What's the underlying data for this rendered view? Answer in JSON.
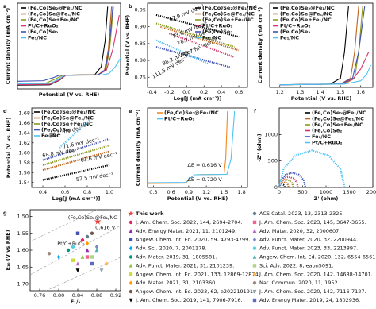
{
  "chart_data": [
    {
      "type": "line",
      "label": "a",
      "xlabel": "Potential (V vs. RHE)",
      "ylabel": "Current density (mA cm⁻²)",
      "xlim": [
        0.2,
        1.8
      ],
      "ylim": [
        -8,
        42
      ],
      "series": [
        {
          "name": "(Fe,Co)Se₂@Fe₁/NC",
          "color": "#000000",
          "x": [
            0.2,
            0.7,
            0.85,
            0.95,
            1.4,
            1.5,
            1.56,
            1.6
          ],
          "values": [
            -5.8,
            -5.6,
            -3,
            0,
            0.3,
            5,
            20,
            40
          ]
        },
        {
          "name": "(Fe,Co)Se@Fe₁/NC",
          "color": "#c0641e",
          "x": [
            0.2,
            0.7,
            0.83,
            0.93,
            1.45,
            1.55,
            1.61,
            1.66
          ],
          "values": [
            -5.2,
            -5,
            -2.5,
            0,
            0.3,
            3,
            15,
            40
          ]
        },
        {
          "name": "(Fe,Co)Se+Fe₁/NC",
          "color": "#8c9a1c",
          "x": [
            0.2,
            0.65,
            0.8,
            0.9,
            1.45,
            1.57,
            1.63,
            1.69
          ],
          "values": [
            -4.8,
            -4.5,
            -2,
            0,
            0.3,
            3,
            15,
            40
          ]
        },
        {
          "name": "Pt/C+RuO₂",
          "color": "#d6336c",
          "x": [
            0.2,
            0.7,
            0.84,
            0.95,
            1.45,
            1.58,
            1.68,
            1.78
          ],
          "values": [
            -5.5,
            -5.3,
            -3,
            0,
            0.2,
            3,
            15,
            35
          ]
        },
        {
          "name": "(Fe,Co)Se₂",
          "color": "#3f51b5",
          "x": [
            0.2,
            0.6,
            0.75,
            0.85,
            1.45,
            1.56,
            1.62,
            1.68
          ],
          "values": [
            -3.5,
            -3.2,
            -1.5,
            0,
            0.2,
            3,
            15,
            40
          ]
        },
        {
          "name": "Fe₁/NC",
          "color": "#4fc3f7",
          "x": [
            0.2,
            0.7,
            0.83,
            0.93,
            1.5,
            1.62,
            1.72,
            1.8
          ],
          "values": [
            -5,
            -4.8,
            -2.5,
            0,
            0.1,
            1,
            5,
            10
          ]
        }
      ]
    },
    {
      "type": "line",
      "label": "b",
      "xlabel": "Log[J (mA cm⁻²)]",
      "ylabel": "Potential (V vs. RHE)",
      "dotted": true,
      "xlim": [
        -0.45,
        0.7
      ],
      "ylim": [
        0.72,
        0.97
      ],
      "xticks": [
        -0.4,
        -0.2,
        {
          "value": 0,
          "label": "0.0"
        },
        0.2,
        0.4,
        0.6
      ],
      "yticks": [
        0.75,
        {
          "value": 0.8,
          "label": "0.80"
        },
        0.85,
        {
          "value": 0.9,
          "label": "0.90"
        },
        0.95
      ],
      "series": [
        {
          "name": "(Fe,Co)Se₂@Fe₁/NC",
          "color": "#000000",
          "x": [
            -0.35,
            0.6
          ],
          "values": [
            0.935,
            0.87
          ]
        },
        {
          "name": "(Fe,Co)Se@Fe₁/NC",
          "color": "#c0641e",
          "x": [
            -0.3,
            0.6
          ],
          "values": [
            0.9,
            0.83
          ]
        },
        {
          "name": "(Fe,Co)Se+Fe₁/NC",
          "color": "#8c9a1c",
          "x": [
            -0.35,
            0.55
          ],
          "values": [
            0.91,
            0.84
          ]
        },
        {
          "name": "Pt/C+RuO₂",
          "color": "#d6336c",
          "x": [
            -0.2,
            0.55
          ],
          "values": [
            0.88,
            0.81
          ]
        },
        {
          "name": "(Fe,Co)Se₂",
          "color": "#3f51b5",
          "x": [
            -0.35,
            0.5
          ],
          "values": [
            0.84,
            0.78
          ]
        },
        {
          "name": "Fe₁/NC",
          "color": "#4fc3f7",
          "x": [
            -0.35,
            0.25
          ],
          "values": [
            0.86,
            0.79
          ]
        }
      ],
      "annotations": [
        "67.9 mV dec⁻¹",
        "73.6 mV dec⁻¹",
        "78.2 mV dec⁻¹",
        "85.7 mV dec⁻¹",
        "98.2 mV dec⁻¹",
        "111.5 mV dec⁻¹"
      ]
    },
    {
      "type": "line",
      "label": "c",
      "xlabel": "Potential (V vs. RHE)",
      "ylabel": "Current density (mA cm⁻²)",
      "xlim": [
        1.15,
        1.66
      ],
      "ylim": [
        -2,
        62
      ],
      "xticks": [
        1.2,
        1.3,
        1.4,
        1.5,
        1.6
      ],
      "series": [
        {
          "name": "(Fe,Co)Se₂@Fe₁/NC",
          "color": "#000000",
          "x": [
            1.2,
            1.45,
            1.5,
            1.52,
            1.54
          ],
          "values": [
            0,
            0.5,
            5,
            25,
            60
          ]
        },
        {
          "name": "(Fe,Co)Se@Fe₁/NC",
          "color": "#c0641e",
          "x": [
            1.2,
            1.5,
            1.55,
            1.57,
            1.59
          ],
          "values": [
            0,
            0.5,
            5,
            25,
            60
          ]
        },
        {
          "name": "(Fe,Co)Se+Fe₁/NC",
          "color": "#8c9a1c",
          "x": [
            1.2,
            1.52,
            1.57,
            1.59,
            1.61
          ],
          "values": [
            0,
            0.5,
            5,
            25,
            60
          ]
        },
        {
          "name": "Pt/C+RuO₂",
          "color": "#d6336c",
          "x": [
            1.2,
            1.5,
            1.56,
            1.6,
            1.64
          ],
          "values": [
            0,
            0.5,
            4,
            12,
            25
          ]
        },
        {
          "name": "(Fe,Co)Se₂",
          "color": "#3f51b5",
          "x": [
            1.2,
            1.5,
            1.56,
            1.59,
            1.62
          ],
          "values": [
            0,
            0.5,
            5,
            25,
            60
          ]
        },
        {
          "name": "Fe₁/NC",
          "color": "#4fc3f7",
          "x": [
            1.2,
            1.52,
            1.6,
            1.63,
            1.65
          ],
          "values": [
            0,
            0.5,
            3,
            8,
            15
          ]
        }
      ]
    },
    {
      "type": "line",
      "label": "d",
      "xlabel": "Log[J (mA cm⁻²)]",
      "ylabel": "Potential (V vs. RHE)",
      "dotted": true,
      "xlim": [
        0.3,
        1.1
      ],
      "ylim": [
        1.53,
        1.69
      ],
      "xticks": [
        0.4,
        0.6,
        0.8,
        {
          "value": 1,
          "label": "1.0"
        }
      ],
      "yticks": [
        1.54,
        1.56,
        1.58,
        {
          "value": 1.6,
          "label": "1.60"
        },
        1.62,
        1.64,
        1.66,
        1.68
      ],
      "series": [
        {
          "name": "(Fe,Co)Se₂@Fe₁/NC",
          "color": "#000000",
          "x": [
            0.4,
            1.0
          ],
          "values": [
            1.545,
            1.575
          ]
        },
        {
          "name": "(Fe,Co)Se@Fe₁/NC",
          "color": "#c0641e",
          "x": [
            0.4,
            1.0
          ],
          "values": [
            1.565,
            1.603
          ]
        },
        {
          "name": "(Fe,Co)Se+Fe₁/NC",
          "color": "#8c9a1c",
          "x": [
            0.4,
            1.0
          ],
          "values": [
            1.575,
            1.615
          ]
        },
        {
          "name": "(Fe,Co)Se₂",
          "color": "#3f51b5",
          "x": [
            0.4,
            1.0
          ],
          "values": [
            1.585,
            1.628
          ]
        },
        {
          "name": "Fe₁/NC",
          "color": "#4fc3f7",
          "x": [
            0.55,
            0.82
          ],
          "values": [
            1.61,
            1.665
          ]
        }
      ],
      "annotations": [
        "52.5 mV dec⁻¹",
        "63.6 mV dec⁻¹",
        "68.8 mV dec⁻¹",
        "71.6 mV dec⁻¹",
        "85.1 mV dec⁻¹"
      ]
    },
    {
      "type": "line",
      "label": "e",
      "xlabel": "Potential (V vs. RHE)",
      "ylabel": "Current density (mA cm⁻²)",
      "xlim": [
        0.2,
        1.9
      ],
      "ylim": [
        -8,
        42
      ],
      "xticks": [
        0.3,
        0.6,
        0.9,
        1.2,
        1.5,
        1.8
      ],
      "series": [
        {
          "name": "(Fe,Co)Se₂@Fe₁/NC",
          "color": "#f08a24",
          "x": [
            0.2,
            0.85,
            0.93,
            1.0,
            1.5,
            1.53,
            1.56
          ],
          "values": [
            -5.5,
            -5.3,
            -2,
            0,
            0.3,
            10,
            40
          ]
        },
        {
          "name": "Pt/C+RuO₂",
          "color": "#4fc3f7",
          "x": [
            0.2,
            0.85,
            0.93,
            1.0,
            1.55,
            1.62,
            1.68
          ],
          "values": [
            -5,
            -4.8,
            -2,
            0,
            0.3,
            10,
            40
          ]
        }
      ],
      "annotations": [
        "ΔE = 0.616 V",
        "ΔE = 0.720 V"
      ]
    },
    {
      "type": "line",
      "label": "f",
      "xlabel": "Z' (ohm)",
      "ylabel": "-Z'' (ohm)",
      "dotted": true,
      "xlim": [
        0,
        2000
      ],
      "ylim": [
        0,
        1500
      ],
      "xticks": [
        0,
        500,
        1000,
        1500,
        2000
      ],
      "yticks": [
        0,
        500,
        1000
      ],
      "series": [
        {
          "name": "(Fe,Co)Se₂@Fe₁/NC",
          "color": "#000000",
          "x": [
            0,
            8,
            30,
            60,
            90,
            112,
            120
          ],
          "values": [
            0,
            30,
            52,
            60,
            52,
            30,
            0
          ]
        },
        {
          "name": "(Fe,Co)Se@Fe₁/NC",
          "color": "#c0641e",
          "x": [
            0,
            13,
            50,
            100,
            150,
            187,
            200
          ],
          "values": [
            0,
            50,
            87,
            100,
            87,
            50,
            0
          ]
        },
        {
          "name": "(Fe,Co)Se+Fe₁/NC",
          "color": "#8c9a1c",
          "x": [
            0,
            20,
            75,
            150,
            225,
            280,
            300
          ],
          "values": [
            0,
            75,
            130,
            150,
            130,
            75,
            0
          ]
        },
        {
          "name": "(Fe,Co)Se₂",
          "color": "#d6336c",
          "x": [
            0,
            27,
            100,
            200,
            300,
            373,
            400
          ],
          "values": [
            0,
            100,
            173,
            200,
            173,
            100,
            0
          ]
        },
        {
          "name": "Fe₁/NC",
          "color": "#3f51b5",
          "x": [
            0,
            38,
            140,
            280,
            420,
            522,
            560
          ],
          "values": [
            0,
            140,
            242,
            280,
            242,
            140,
            0
          ]
        },
        {
          "name": "Pt/C+RuO₂",
          "color": "#4fc3f7",
          "x": [
            0,
            94,
            350,
            700,
            1050,
            1306,
            1400
          ],
          "values": [
            0,
            350,
            606,
            700,
            606,
            350,
            0
          ]
        }
      ]
    },
    {
      "type": "scatter",
      "label": "g",
      "xlabel": "E₁/₂",
      "ylabel": "E₁₀ (V vs.RHE)",
      "y_inverted": true,
      "xlim": [
        0.74,
        0.93
      ],
      "ylim": [
        1.48,
        1.72
      ],
      "xticks": [
        0.76,
        {
          "value": 0.8,
          "label": "0.80"
        },
        0.84,
        0.88,
        0.92
      ],
      "yticks": [
        {
          "value": 1.5,
          "label": "1.50"
        },
        1.55,
        {
          "value": 1.6,
          "label": "1.60"
        },
        1.65,
        {
          "value": 1.7,
          "label": "1.70"
        }
      ],
      "series": [
        {
          "name": "This work",
          "color": "#e53935",
          "marker": "star",
          "x": [
            0.882
          ],
          "values": [
            1.515
          ]
        },
        {
          "name": "J. Am. Chem. Soc. 2022, 144, 2694-2704.",
          "color": "#e91e63",
          "marker": "circle",
          "x": [
            0.85
          ],
          "values": [
            1.57
          ]
        },
        {
          "name": "Adv. Energy Mater. 2021, 11, 2101249.",
          "color": "#9c27b0",
          "marker": "triangle",
          "x": [
            0.86
          ],
          "values": [
            1.6
          ]
        },
        {
          "name": "Angew. Chem. Int. Ed. 2020, 59, 4793-4799.",
          "color": "#3f51b5",
          "marker": "square",
          "x": [
            0.84
          ],
          "values": [
            1.55
          ]
        },
        {
          "name": "Adv. Sci. 2020, 7, 2001178.",
          "color": "#03a9f4",
          "marker": "diamond",
          "x": [
            0.8
          ],
          "values": [
            1.62
          ]
        },
        {
          "name": "Adv. Mater. 2019, 31, 1805581.",
          "color": "#009688",
          "marker": "circle",
          "x": [
            0.82
          ],
          "values": [
            1.6
          ]
        },
        {
          "name": "Adv. Funct. Mater. 2021, 31, 2101239.",
          "color": "#8bc34a",
          "marker": "triangle",
          "x": [
            0.85
          ],
          "values": [
            1.62
          ]
        },
        {
          "name": "Angew. Chem. Int. Ed. 2021, 133, 12869-12874.",
          "color": "#cddc39",
          "marker": "square",
          "x": [
            0.83
          ],
          "values": [
            1.63
          ]
        },
        {
          "name": "Adv. Mater. 2021, 31, 2103360.",
          "color": "#ff9800",
          "marker": "diamond",
          "x": [
            0.86
          ],
          "values": [
            1.58
          ]
        },
        {
          "name": "Angew. Chem. Int. Ed. 2023, 62, e202219191.",
          "color": "#795548",
          "marker": "circle",
          "x": [
            0.87
          ],
          "values": [
            1.55
          ]
        },
        {
          "name": "J. Am. Chem. Soc. 2019, 141, 7906-7916.",
          "color": "#000000",
          "marker": "triangle-down",
          "x": [
            0.84
          ],
          "values": [
            1.66
          ]
        },
        {
          "name": "ACS Catal. 2023, 13, 2313-2325.",
          "color": "#607d8b",
          "marker": "circle",
          "x": [
            0.86
          ],
          "values": [
            1.56
          ]
        },
        {
          "name": "J. Am. Chem. Soc. 2023, 145, 3647-3655.",
          "color": "#f06292",
          "marker": "square",
          "x": [
            0.86
          ],
          "values": [
            1.62
          ]
        },
        {
          "name": "Adv. Mater. 2020, 32, 2000607.",
          "color": "#ba68c8",
          "marker": "triangle",
          "x": [
            0.84
          ],
          "values": [
            1.64
          ]
        },
        {
          "name": "Adv. Funct. Mater. 2020, 32, 2200944.",
          "color": "#7986cb",
          "marker": "diamond",
          "x": [
            0.88
          ],
          "values": [
            1.59
          ]
        },
        {
          "name": "Adv. Funct. Mater. 2023, 33, 2213897.",
          "color": "#4dd0e1",
          "marker": "circle",
          "x": [
            0.83
          ],
          "values": [
            1.59
          ]
        },
        {
          "name": "Angew. Chem. Int. Ed. 2020, 132, 6554-6561.",
          "color": "#4db6ac",
          "marker": "triangle",
          "x": [
            0.88
          ],
          "values": [
            1.6
          ]
        },
        {
          "name": "Sci. Adv. 2022, 8, eabn5091.",
          "color": "#aed581",
          "marker": "square",
          "x": [
            0.87
          ],
          "values": [
            1.62
          ]
        },
        {
          "name": "J. Am. Chem. Soc. 2020, 142, 14688-14701.",
          "color": "#ffb74d",
          "marker": "diamond",
          "x": [
            0.9
          ],
          "values": [
            1.64
          ]
        },
        {
          "name": "Nat. Commun. 2020, 11, 1952.",
          "color": "#a1887f",
          "marker": "circle",
          "x": [
            0.78
          ],
          "values": [
            1.61
          ]
        },
        {
          "name": "J. Am. Chem. Soc. 2020, 142, 7116-7127.",
          "color": "#90a4ae",
          "marker": "triangle-down",
          "x": [
            0.89
          ],
          "values": [
            1.66
          ]
        },
        {
          "name": "Adv. Energy Mater. 2019, 24, 1802936.",
          "color": "#5c6bc0",
          "marker": "square",
          "x": [
            0.87
          ],
          "values": [
            1.64
          ]
        }
      ],
      "annotations": [
        "(Fe,Co)Se₂@Fe₁/NC",
        "0.616 V",
        "Pt/C+RuO₂"
      ]
    }
  ]
}
